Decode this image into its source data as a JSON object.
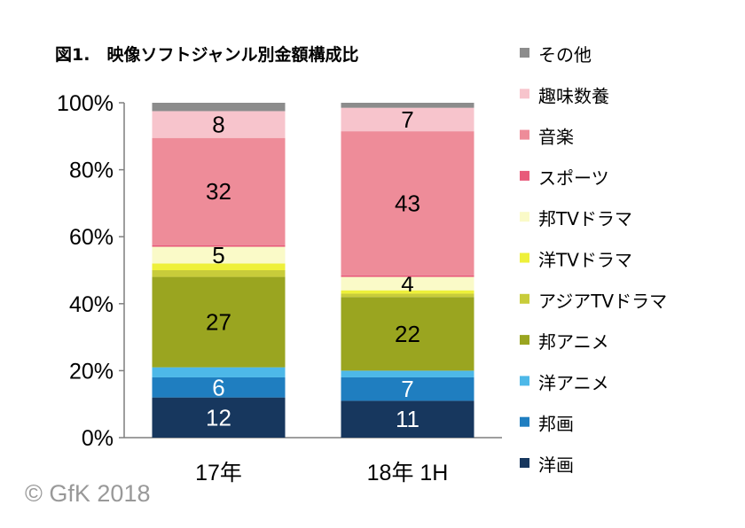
{
  "chart_data": {
    "type": "bar",
    "stacked": true,
    "title": "図1.　映像ソフトジャンル別金額構成比",
    "categories": [
      "17年",
      "18年 1H"
    ],
    "ylim": [
      0,
      100
    ],
    "yticks": [
      "0%",
      "20%",
      "40%",
      "60%",
      "80%",
      "100%"
    ],
    "series": [
      {
        "name": "洋画",
        "color": "#17375e",
        "values": [
          12,
          11
        ],
        "labels": [
          "12",
          "11"
        ],
        "label_color": "#ffffff"
      },
      {
        "name": "邦画",
        "color": "#1f7ec0",
        "values": [
          6,
          7
        ],
        "labels": [
          "6",
          "7"
        ],
        "label_color": "#ffffff"
      },
      {
        "name": "洋アニメ",
        "color": "#4db8e8",
        "values": [
          3,
          2
        ],
        "labels": [
          "",
          ""
        ],
        "label_color": "#000000"
      },
      {
        "name": "邦アニメ",
        "color": "#9aa520",
        "values": [
          27,
          22
        ],
        "labels": [
          "27",
          "22"
        ],
        "label_color": "#000000"
      },
      {
        "name": "アジアTVドラマ",
        "color": "#c8cc3a",
        "values": [
          2,
          1
        ],
        "labels": [
          "",
          ""
        ],
        "label_color": "#000000"
      },
      {
        "name": "洋TVドラマ",
        "color": "#eef03a",
        "values": [
          2,
          1
        ],
        "labels": [
          "",
          ""
        ],
        "label_color": "#000000"
      },
      {
        "name": "邦TVドラマ",
        "color": "#fafac8",
        "values": [
          5,
          4
        ],
        "labels": [
          "5",
          "4"
        ],
        "label_color": "#000000"
      },
      {
        "name": "スポーツ",
        "color": "#e85a7a",
        "values": [
          0.5,
          0.5
        ],
        "labels": [
          "",
          ""
        ],
        "label_color": "#000000"
      },
      {
        "name": "音楽",
        "color": "#ee8c99",
        "values": [
          32,
          43
        ],
        "labels": [
          "32",
          "43"
        ],
        "label_color": "#000000"
      },
      {
        "name": "趣味数養",
        "color": "#f7c4cc",
        "values": [
          8,
          7
        ],
        "labels": [
          "8",
          "7"
        ],
        "label_color": "#000000"
      },
      {
        "name": "その他",
        "color": "#8c8c8c",
        "values": [
          2.5,
          1.5
        ],
        "labels": [
          "",
          ""
        ],
        "label_color": "#000000"
      }
    ],
    "legend_position": "right",
    "grid": false
  },
  "copyright": "© GfK 2018"
}
